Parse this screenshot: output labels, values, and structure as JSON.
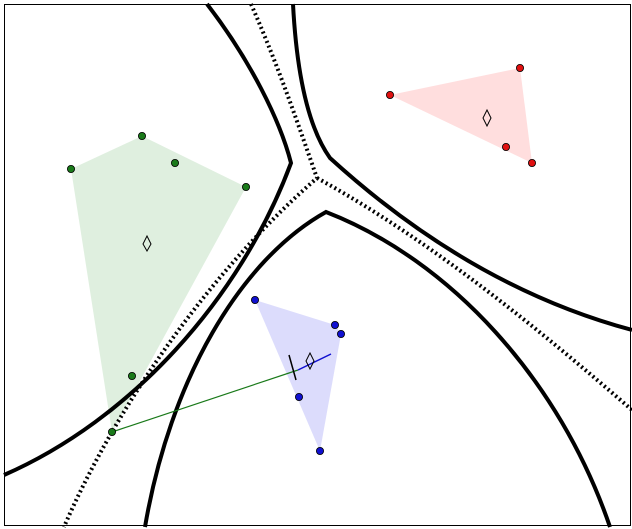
{
  "diagram": {
    "background": "#ffffff",
    "frame_color": "#000000",
    "clusters": [
      {
        "id": "green",
        "point_color": "#1a7a1a",
        "hull_color": "#c9e4c9",
        "line_color": "#1a7a1a"
      },
      {
        "id": "red",
        "point_color": "#e01010",
        "hull_color": "#ffc8c8",
        "line_color": "#e01010"
      },
      {
        "id": "blue",
        "point_color": "#1010d0",
        "hull_color": "#c4c4fa",
        "line_color": "#1010d0"
      }
    ],
    "boundary_color": "#000000",
    "icons": {
      "centroid": "diamond-icon",
      "point": "circle-icon"
    }
  }
}
